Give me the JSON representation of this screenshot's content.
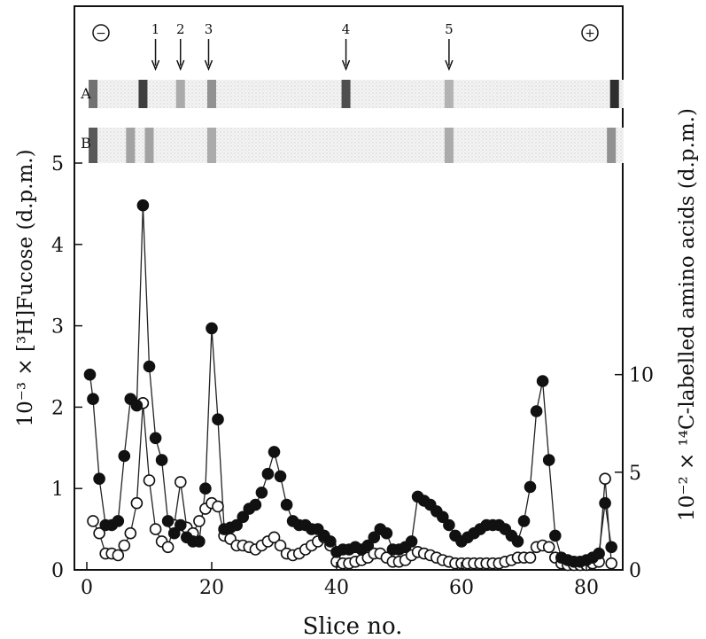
{
  "chart_data": {
    "type": "scatter",
    "xlabel": "Slice no.",
    "ylabel_left": "10⁻³ × [³H]Fucose (d.p.m.)",
    "ylabel_right": "10⁻² × ¹⁴C-labelled amino acids (d.p.m.)",
    "xlim": [
      -1,
      86
    ],
    "ylim_left": [
      0,
      6.3
    ],
    "ylim_right": [
      0,
      26.25
    ],
    "x_ticks": [
      0,
      20,
      40,
      60,
      80
    ],
    "y_ticks_left": [
      0,
      1,
      2,
      3,
      4,
      5
    ],
    "y_ticks_right": [
      0,
      5,
      10
    ],
    "grid": false,
    "series": [
      {
        "marker": "filled-circle",
        "axis": "left",
        "points": [
          [
            0.5,
            2.4
          ],
          [
            1,
            2.1
          ],
          [
            2,
            1.12
          ],
          [
            3,
            0.55
          ],
          [
            4,
            0.55
          ],
          [
            5,
            0.6
          ],
          [
            6,
            1.4
          ],
          [
            7,
            2.1
          ],
          [
            8,
            2.02
          ],
          [
            9,
            4.48
          ],
          [
            10,
            2.5
          ],
          [
            11,
            1.62
          ],
          [
            12,
            1.35
          ],
          [
            13,
            0.6
          ],
          [
            14,
            0.45
          ],
          [
            15,
            0.55
          ],
          [
            16,
            0.4
          ],
          [
            17,
            0.35
          ],
          [
            18,
            0.35
          ],
          [
            19,
            1.0
          ],
          [
            20,
            2.97
          ],
          [
            21,
            1.85
          ],
          [
            22,
            0.5
          ],
          [
            23,
            0.52
          ],
          [
            24,
            0.55
          ],
          [
            25,
            0.65
          ],
          [
            26,
            0.75
          ],
          [
            27,
            0.8
          ],
          [
            28,
            0.95
          ],
          [
            29,
            1.18
          ],
          [
            30,
            1.45
          ],
          [
            31,
            1.15
          ],
          [
            32,
            0.8
          ],
          [
            33,
            0.6
          ],
          [
            34,
            0.55
          ],
          [
            35,
            0.55
          ],
          [
            36,
            0.5
          ],
          [
            37,
            0.5
          ],
          [
            38,
            0.42
          ],
          [
            39,
            0.35
          ],
          [
            40,
            0.22
          ],
          [
            41,
            0.25
          ],
          [
            42,
            0.25
          ],
          [
            43,
            0.28
          ],
          [
            44,
            0.25
          ],
          [
            45,
            0.3
          ],
          [
            46,
            0.4
          ],
          [
            47,
            0.5
          ],
          [
            48,
            0.45
          ],
          [
            49,
            0.25
          ],
          [
            50,
            0.25
          ],
          [
            51,
            0.28
          ],
          [
            52,
            0.35
          ],
          [
            53,
            0.9
          ],
          [
            54,
            0.85
          ],
          [
            55,
            0.8
          ],
          [
            56,
            0.72
          ],
          [
            57,
            0.65
          ],
          [
            58,
            0.55
          ],
          [
            59,
            0.42
          ],
          [
            60,
            0.35
          ],
          [
            61,
            0.4
          ],
          [
            62,
            0.45
          ],
          [
            63,
            0.5
          ],
          [
            64,
            0.55
          ],
          [
            65,
            0.55
          ],
          [
            66,
            0.55
          ],
          [
            67,
            0.5
          ],
          [
            68,
            0.42
          ],
          [
            69,
            0.35
          ],
          [
            70,
            0.6
          ],
          [
            71,
            1.02
          ],
          [
            72,
            1.95
          ],
          [
            73,
            2.32
          ],
          [
            74,
            1.35
          ],
          [
            75,
            0.42
          ],
          [
            76,
            0.15
          ],
          [
            77,
            0.12
          ],
          [
            78,
            0.1
          ],
          [
            79,
            0.1
          ],
          [
            80,
            0.12
          ],
          [
            81,
            0.15
          ],
          [
            82,
            0.2
          ],
          [
            83,
            0.82
          ],
          [
            84,
            0.28
          ]
        ]
      },
      {
        "marker": "open-circle",
        "axis": "left",
        "points": [
          [
            1,
            0.6
          ],
          [
            2,
            0.45
          ],
          [
            3,
            0.2
          ],
          [
            4,
            0.2
          ],
          [
            5,
            0.18
          ],
          [
            6,
            0.3
          ],
          [
            7,
            0.45
          ],
          [
            8,
            0.82
          ],
          [
            9,
            2.05
          ],
          [
            10,
            1.1
          ],
          [
            11,
            0.5
          ],
          [
            12,
            0.35
          ],
          [
            13,
            0.28
          ],
          [
            14,
            0.55
          ],
          [
            15,
            1.08
          ],
          [
            16,
            0.52
          ],
          [
            17,
            0.45
          ],
          [
            18,
            0.6
          ],
          [
            19,
            0.75
          ],
          [
            20,
            0.82
          ],
          [
            21,
            0.78
          ],
          [
            22,
            0.42
          ],
          [
            23,
            0.38
          ],
          [
            24,
            0.3
          ],
          [
            25,
            0.3
          ],
          [
            26,
            0.28
          ],
          [
            27,
            0.25
          ],
          [
            28,
            0.3
          ],
          [
            29,
            0.35
          ],
          [
            30,
            0.4
          ],
          [
            31,
            0.3
          ],
          [
            32,
            0.2
          ],
          [
            33,
            0.18
          ],
          [
            34,
            0.2
          ],
          [
            35,
            0.25
          ],
          [
            36,
            0.3
          ],
          [
            37,
            0.35
          ],
          [
            38,
            0.4
          ],
          [
            39,
            0.3
          ],
          [
            40,
            0.1
          ],
          [
            41,
            0.08
          ],
          [
            42,
            0.08
          ],
          [
            43,
            0.1
          ],
          [
            44,
            0.12
          ],
          [
            45,
            0.15
          ],
          [
            46,
            0.2
          ],
          [
            47,
            0.2
          ],
          [
            48,
            0.15
          ],
          [
            49,
            0.1
          ],
          [
            50,
            0.1
          ],
          [
            51,
            0.12
          ],
          [
            52,
            0.18
          ],
          [
            53,
            0.22
          ],
          [
            54,
            0.2
          ],
          [
            55,
            0.18
          ],
          [
            56,
            0.15
          ],
          [
            57,
            0.12
          ],
          [
            58,
            0.1
          ],
          [
            59,
            0.08
          ],
          [
            60,
            0.08
          ],
          [
            61,
            0.08
          ],
          [
            62,
            0.08
          ],
          [
            63,
            0.08
          ],
          [
            64,
            0.08
          ],
          [
            65,
            0.08
          ],
          [
            66,
            0.08
          ],
          [
            67,
            0.1
          ],
          [
            68,
            0.12
          ],
          [
            69,
            0.15
          ],
          [
            70,
            0.15
          ],
          [
            71,
            0.15
          ],
          [
            72,
            0.28
          ],
          [
            73,
            0.3
          ],
          [
            74,
            0.28
          ],
          [
            75,
            0.15
          ],
          [
            76,
            0.08
          ],
          [
            77,
            0.06
          ],
          [
            78,
            0.06
          ],
          [
            79,
            0.06
          ],
          [
            80,
            0.06
          ],
          [
            81,
            0.08
          ],
          [
            82,
            0.1
          ],
          [
            83,
            1.12
          ],
          [
            84,
            0.08
          ]
        ]
      }
    ],
    "gel": {
      "minus_symbol": "−",
      "plus_symbol": "+",
      "lane_labels": [
        "A",
        "B"
      ],
      "arrows": [
        {
          "label": "1",
          "slice": 11
        },
        {
          "label": "2",
          "slice": 15
        },
        {
          "label": "3",
          "slice": 19.5
        },
        {
          "label": "4",
          "slice": 41.5
        },
        {
          "label": "5",
          "slice": 58
        }
      ],
      "lane_a_bands": [
        {
          "slice": 1,
          "dark": 0.55
        },
        {
          "slice": 9,
          "dark": 0.85
        },
        {
          "slice": 15,
          "dark": 0.2
        },
        {
          "slice": 20,
          "dark": 0.35
        },
        {
          "slice": 41.5,
          "dark": 0.75
        },
        {
          "slice": 58,
          "dark": 0.15
        },
        {
          "slice": 84.5,
          "dark": 0.95
        }
      ],
      "lane_b_bands": [
        {
          "slice": 1,
          "dark": 0.7
        },
        {
          "slice": 7,
          "dark": 0.25
        },
        {
          "slice": 10,
          "dark": 0.25
        },
        {
          "slice": 20,
          "dark": 0.2
        },
        {
          "slice": 58,
          "dark": 0.2
        },
        {
          "slice": 84,
          "dark": 0.35
        }
      ]
    }
  }
}
